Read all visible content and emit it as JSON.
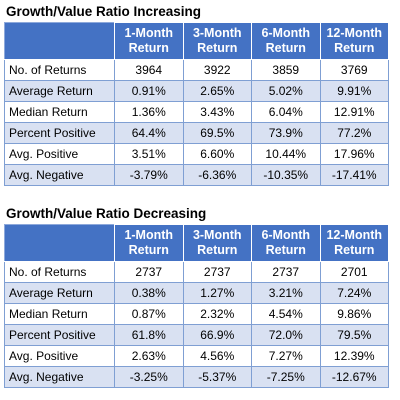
{
  "tables": [
    {
      "title": "Growth/Value Ratio Increasing",
      "headers": [
        "",
        "1-Month Return",
        "3-Month Return",
        "6-Month Return",
        "12-Month Return"
      ],
      "rows": [
        {
          "label": "No. of Returns",
          "values": [
            "3964",
            "3922",
            "3859",
            "3769"
          ]
        },
        {
          "label": "Average Return",
          "values": [
            "0.91%",
            "2.65%",
            "5.02%",
            "9.91%"
          ]
        },
        {
          "label": "Median Return",
          "values": [
            "1.36%",
            "3.43%",
            "6.04%",
            "12.91%"
          ]
        },
        {
          "label": "Percent Positive",
          "values": [
            "64.4%",
            "69.5%",
            "73.9%",
            "77.2%"
          ]
        },
        {
          "label": "Avg. Positive",
          "values": [
            "3.51%",
            "6.60%",
            "10.44%",
            "17.96%"
          ]
        },
        {
          "label": "Avg. Negative",
          "values": [
            "-3.79%",
            "-6.36%",
            "-10.35%",
            "-17.41%"
          ]
        }
      ]
    },
    {
      "title": "Growth/Value Ratio Decreasing",
      "headers": [
        "",
        "1-Month Return",
        "3-Month Return",
        "6-Month Return",
        "12-Month Return"
      ],
      "rows": [
        {
          "label": "No. of Returns",
          "values": [
            "2737",
            "2737",
            "2737",
            "2701"
          ]
        },
        {
          "label": "Average Return",
          "values": [
            "0.38%",
            "1.27%",
            "3.21%",
            "7.24%"
          ]
        },
        {
          "label": "Median Return",
          "values": [
            "0.87%",
            "2.32%",
            "4.54%",
            "9.86%"
          ]
        },
        {
          "label": "Percent Positive",
          "values": [
            "61.8%",
            "66.9%",
            "72.0%",
            "79.5%"
          ]
        },
        {
          "label": "Avg. Positive",
          "values": [
            "2.63%",
            "4.56%",
            "7.27%",
            "12.39%"
          ]
        },
        {
          "label": "Avg. Negative",
          "values": [
            "-3.25%",
            "-5.37%",
            "-7.25%",
            "-12.67%"
          ]
        }
      ]
    }
  ],
  "colors": {
    "header_background": "#4472C4",
    "header_text": "#FFFFFF",
    "band_row": "#D9E1F2",
    "grid_line": "#7F9FD3"
  }
}
